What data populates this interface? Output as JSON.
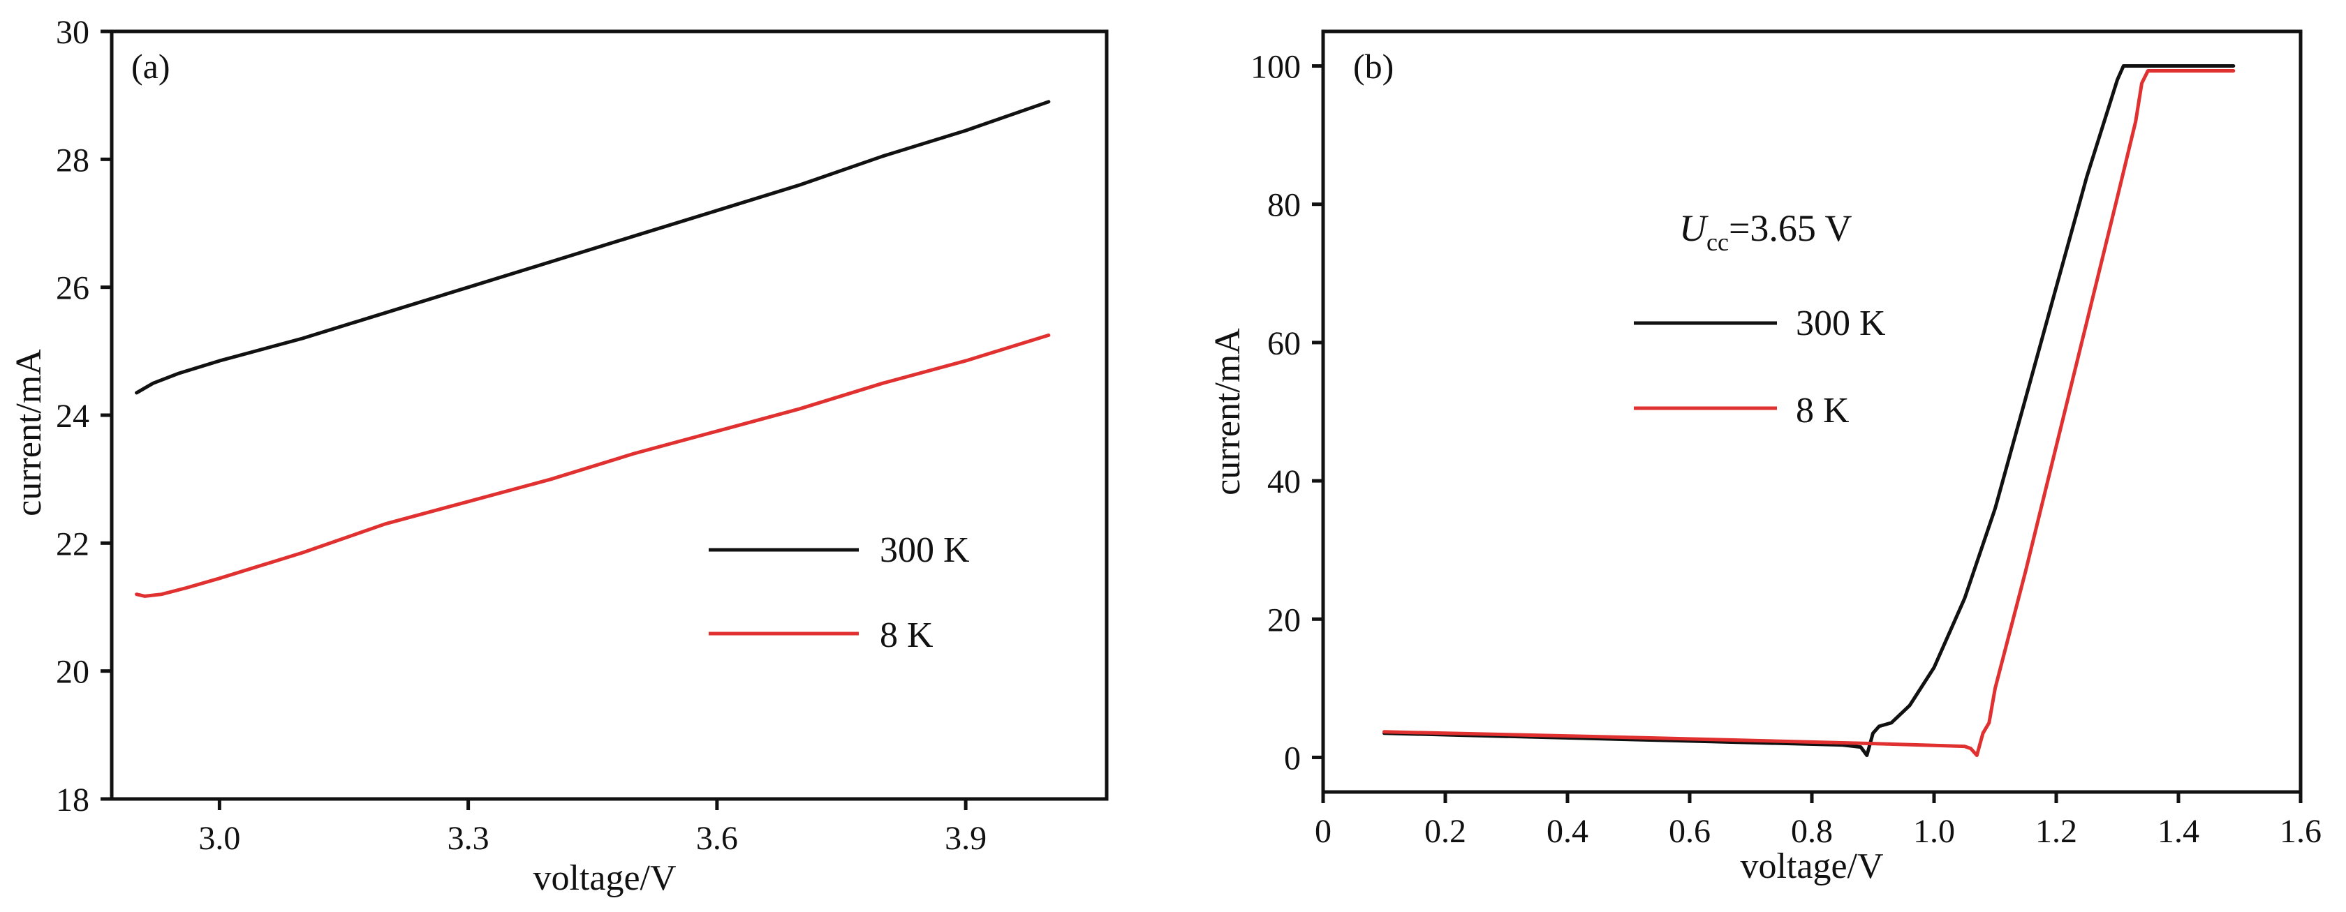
{
  "chart_data": [
    {
      "type": "line",
      "panel_label": "(a)",
      "xlabel": "voltage/V",
      "ylabel": "current/mA",
      "xlim": [
        2.87,
        4.07
      ],
      "ylim": [
        18,
        30
      ],
      "xticks": [
        3.0,
        3.3,
        3.6,
        3.9
      ],
      "xtick_labels": [
        "3.0",
        "3.3",
        "3.6",
        "3.9"
      ],
      "yticks": [
        18,
        20,
        22,
        24,
        26,
        28,
        30
      ],
      "ytick_labels": [
        "18",
        "20",
        "22",
        "24",
        "26",
        "28",
        "30"
      ],
      "grid": false,
      "legend_position": "bottom-right",
      "series": [
        {
          "name": "300 K",
          "color": "#111111",
          "x": [
            2.9,
            2.92,
            2.95,
            3.0,
            3.1,
            3.2,
            3.3,
            3.4,
            3.5,
            3.6,
            3.7,
            3.8,
            3.9,
            4.0
          ],
          "y": [
            24.35,
            24.5,
            24.65,
            24.85,
            25.2,
            25.6,
            26.0,
            26.4,
            26.8,
            27.2,
            27.6,
            28.05,
            28.45,
            28.9
          ]
        },
        {
          "name": "8 K",
          "color": "#e03030",
          "x": [
            2.9,
            2.91,
            2.93,
            2.96,
            3.0,
            3.1,
            3.2,
            3.3,
            3.4,
            3.5,
            3.6,
            3.7,
            3.8,
            3.9,
            4.0
          ],
          "y": [
            21.2,
            21.17,
            21.2,
            21.3,
            21.45,
            21.85,
            22.3,
            22.65,
            23.0,
            23.4,
            23.75,
            24.1,
            24.5,
            24.85,
            25.25
          ]
        }
      ]
    },
    {
      "type": "line",
      "panel_label": "(b)",
      "annotation": {
        "symbol": "U",
        "subscript": "cc",
        "value": "=3.65 V"
      },
      "xlabel": "voltage/V",
      "ylabel": "current/mA",
      "xlim": [
        0,
        1.6
      ],
      "ylim": [
        -5,
        105
      ],
      "xticks": [
        0,
        0.2,
        0.4,
        0.6,
        0.8,
        1.0,
        1.2,
        1.4,
        1.6
      ],
      "xtick_labels": [
        "0",
        "0.2",
        "0.4",
        "0.6",
        "0.8",
        "1.0",
        "1.2",
        "1.4",
        "1.6"
      ],
      "yticks": [
        0,
        20,
        40,
        60,
        80,
        100
      ],
      "ytick_labels": [
        "0",
        "20",
        "40",
        "60",
        "80",
        "100"
      ],
      "grid": false,
      "legend_position": "top-center",
      "series": [
        {
          "name": "300 K",
          "color": "#111111",
          "x": [
            0.1,
            0.5,
            0.85,
            0.88,
            0.89,
            0.9,
            0.91,
            0.93,
            0.96,
            1.0,
            1.05,
            1.1,
            1.15,
            1.2,
            1.25,
            1.3,
            1.31,
            1.32,
            1.49
          ],
          "y": [
            3.5,
            2.6,
            1.8,
            1.5,
            0.3,
            3.5,
            4.5,
            5.0,
            7.5,
            13.0,
            23.0,
            36.0,
            52.0,
            68.0,
            84.0,
            98.0,
            100.0,
            100.0,
            100.0
          ]
        },
        {
          "name": "8 K",
          "color": "#e03030",
          "x": [
            0.1,
            0.5,
            0.9,
            1.05,
            1.06,
            1.07,
            1.08,
            1.09,
            1.1,
            1.15,
            1.2,
            1.25,
            1.3,
            1.33,
            1.34,
            1.35,
            1.49
          ],
          "y": [
            3.7,
            2.9,
            2.0,
            1.6,
            1.3,
            0.3,
            3.5,
            5.0,
            10.0,
            27.0,
            45.0,
            63.0,
            81.0,
            92.0,
            97.5,
            99.3,
            99.3
          ]
        }
      ]
    }
  ]
}
